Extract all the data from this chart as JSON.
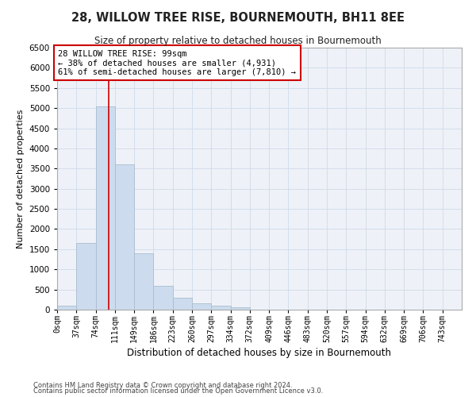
{
  "title": "28, WILLOW TREE RISE, BOURNEMOUTH, BH11 8EE",
  "subtitle": "Size of property relative to detached houses in Bournemouth",
  "xlabel": "Distribution of detached houses by size in Bournemouth",
  "ylabel": "Number of detached properties",
  "footnote1": "Contains HM Land Registry data © Crown copyright and database right 2024.",
  "footnote2": "Contains public sector information licensed under the Open Government Licence v3.0.",
  "bar_labels": [
    "0sqm",
    "37sqm",
    "74sqm",
    "111sqm",
    "149sqm",
    "186sqm",
    "223sqm",
    "260sqm",
    "297sqm",
    "334sqm",
    "372sqm",
    "409sqm",
    "446sqm",
    "483sqm",
    "520sqm",
    "557sqm",
    "594sqm",
    "632sqm",
    "669sqm",
    "706sqm",
    "743sqm"
  ],
  "bar_values": [
    100,
    1650,
    5050,
    3600,
    1400,
    600,
    300,
    150,
    100,
    60,
    5,
    0,
    0,
    0,
    0,
    0,
    0,
    0,
    0,
    0,
    0
  ],
  "bar_color": "#ccdcee",
  "bar_edge_color": "#aabcce",
  "grid_color": "#d0dae8",
  "background_color": "#eef2f8",
  "marker_line_color": "#cc0000",
  "annotation_line1": "28 WILLOW TREE RISE: 99sqm",
  "annotation_line2": "← 38% of detached houses are smaller (4,931)",
  "annotation_line3": "61% of semi-detached houses are larger (7,810) →",
  "annotation_box_facecolor": "#ffffff",
  "annotation_box_edgecolor": "#cc0000",
  "ylim_max": 6500,
  "ytick_step": 500,
  "bin_width": 37,
  "n_bars": 21,
  "property_sqm": 99
}
